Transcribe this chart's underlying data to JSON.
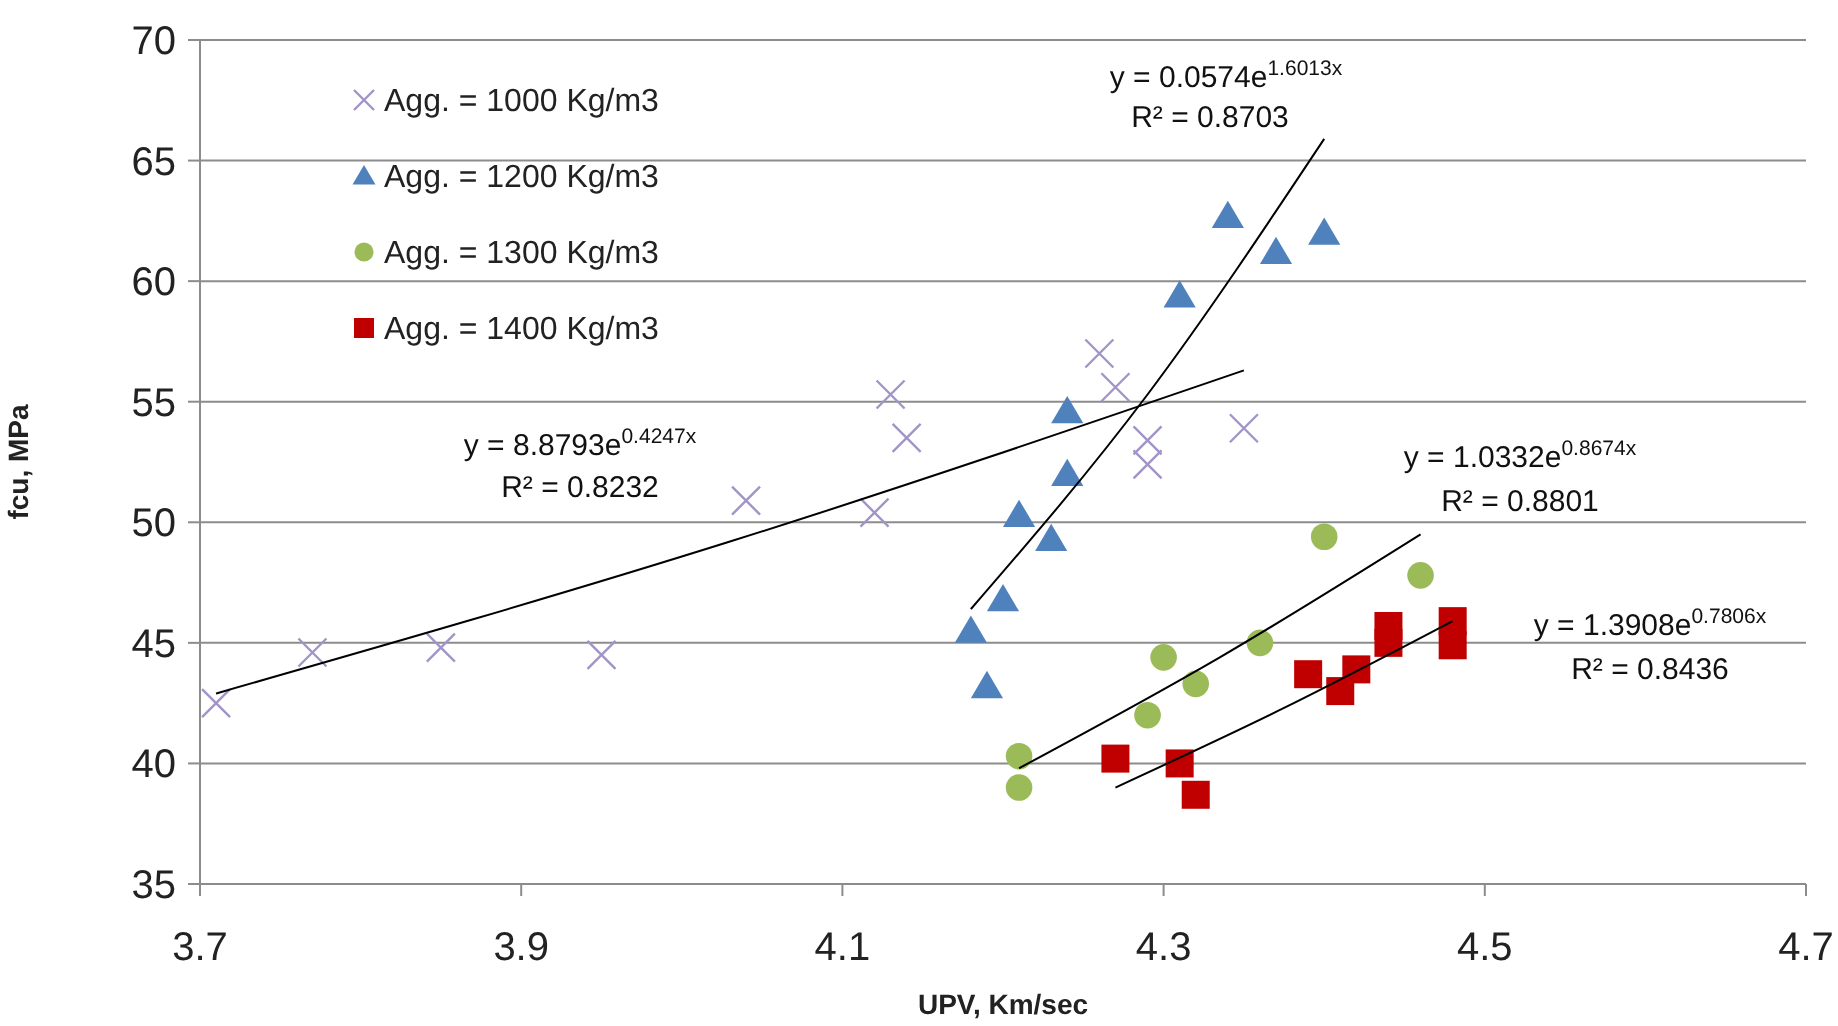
{
  "chart_data": {
    "type": "scatter",
    "xlabel": "UPV, Km/sec",
    "ylabel": "fcu, MPa",
    "xlim": [
      3.7,
      4.7
    ],
    "xticks": [
      3.7,
      3.9,
      4.1,
      4.3,
      4.5,
      4.7
    ],
    "ylim": [
      35,
      70
    ],
    "yticks": [
      35,
      40,
      45,
      50,
      55,
      60,
      65,
      70
    ],
    "grid": "y",
    "legend": "top left",
    "series": [
      {
        "name": "Agg. = 1000 Kg/m3",
        "color": "#a294c8",
        "marker": "cross",
        "x": [
          3.71,
          3.77,
          3.85,
          3.95,
          4.04,
          4.12,
          4.13,
          4.14,
          4.26,
          4.27,
          4.29,
          4.29,
          4.35
        ],
        "values": [
          42.5,
          44.6,
          44.8,
          44.5,
          50.9,
          50.4,
          55.3,
          53.5,
          57.0,
          55.6,
          53.4,
          52.4,
          53.9
        ]
      },
      {
        "name": "Agg. = 1200 Kg/m3",
        "color": "#4f81bd",
        "marker": "triangle",
        "x": [
          4.34,
          4.37,
          4.4,
          4.31,
          4.24,
          4.24,
          4.21,
          4.23,
          4.2,
          4.18,
          4.19
        ],
        "values": [
          62.7,
          61.2,
          62.0,
          59.4,
          54.6,
          52.0,
          50.3,
          49.3,
          46.8,
          45.5,
          43.2
        ]
      },
      {
        "name": "Agg. = 1300 Kg/m3",
        "color": "#9bbb59",
        "marker": "circle",
        "x": [
          4.4,
          4.3,
          4.32,
          4.29,
          4.36,
          4.21,
          4.21,
          4.46
        ],
        "values": [
          49.4,
          44.4,
          43.3,
          42.0,
          45.0,
          40.3,
          39.0,
          47.8
        ]
      },
      {
        "name": "Agg. = 1400 Kg/m3",
        "color": "#c00000",
        "marker": "square",
        "x": [
          4.27,
          4.31,
          4.32,
          4.39,
          4.41,
          4.42,
          4.44,
          4.44,
          4.48,
          4.48
        ],
        "values": [
          40.2,
          40.0,
          38.7,
          43.7,
          43.0,
          43.9,
          45.7,
          45.0,
          45.9,
          44.9
        ]
      },
      {
        "type": "line",
        "color": "#000000",
        "marker": "none",
        "x": [
          3.71,
          4.03,
          4.35
        ],
        "values": [
          42.9,
          49.2,
          56.3
        ]
      },
      {
        "type": "line",
        "color": "#000000",
        "marker": "none",
        "x": [
          4.18,
          4.29,
          4.4
        ],
        "values": [
          46.4,
          55.3,
          65.9
        ]
      },
      {
        "type": "line",
        "color": "#000000",
        "marker": "none",
        "x": [
          4.21,
          4.335,
          4.46
        ],
        "values": [
          39.8,
          44.4,
          49.5
        ]
      },
      {
        "type": "line",
        "color": "#000000",
        "marker": "none",
        "x": [
          4.27,
          4.375,
          4.48
        ],
        "values": [
          39.0,
          42.3,
          45.9
        ]
      }
    ],
    "annotations": [
      "y = 0.0574e$^{1.6013x}$",
      "R² = 0.8703",
      "y = 8.8793e$^{0.4247x}$",
      "R² = 0.8232",
      "y = 1.0332e$^{0.8674x}$",
      "R² = 0.8801",
      "y = 1.3908e$^{0.7806x}$",
      "R² = 0.8436"
    ]
  }
}
